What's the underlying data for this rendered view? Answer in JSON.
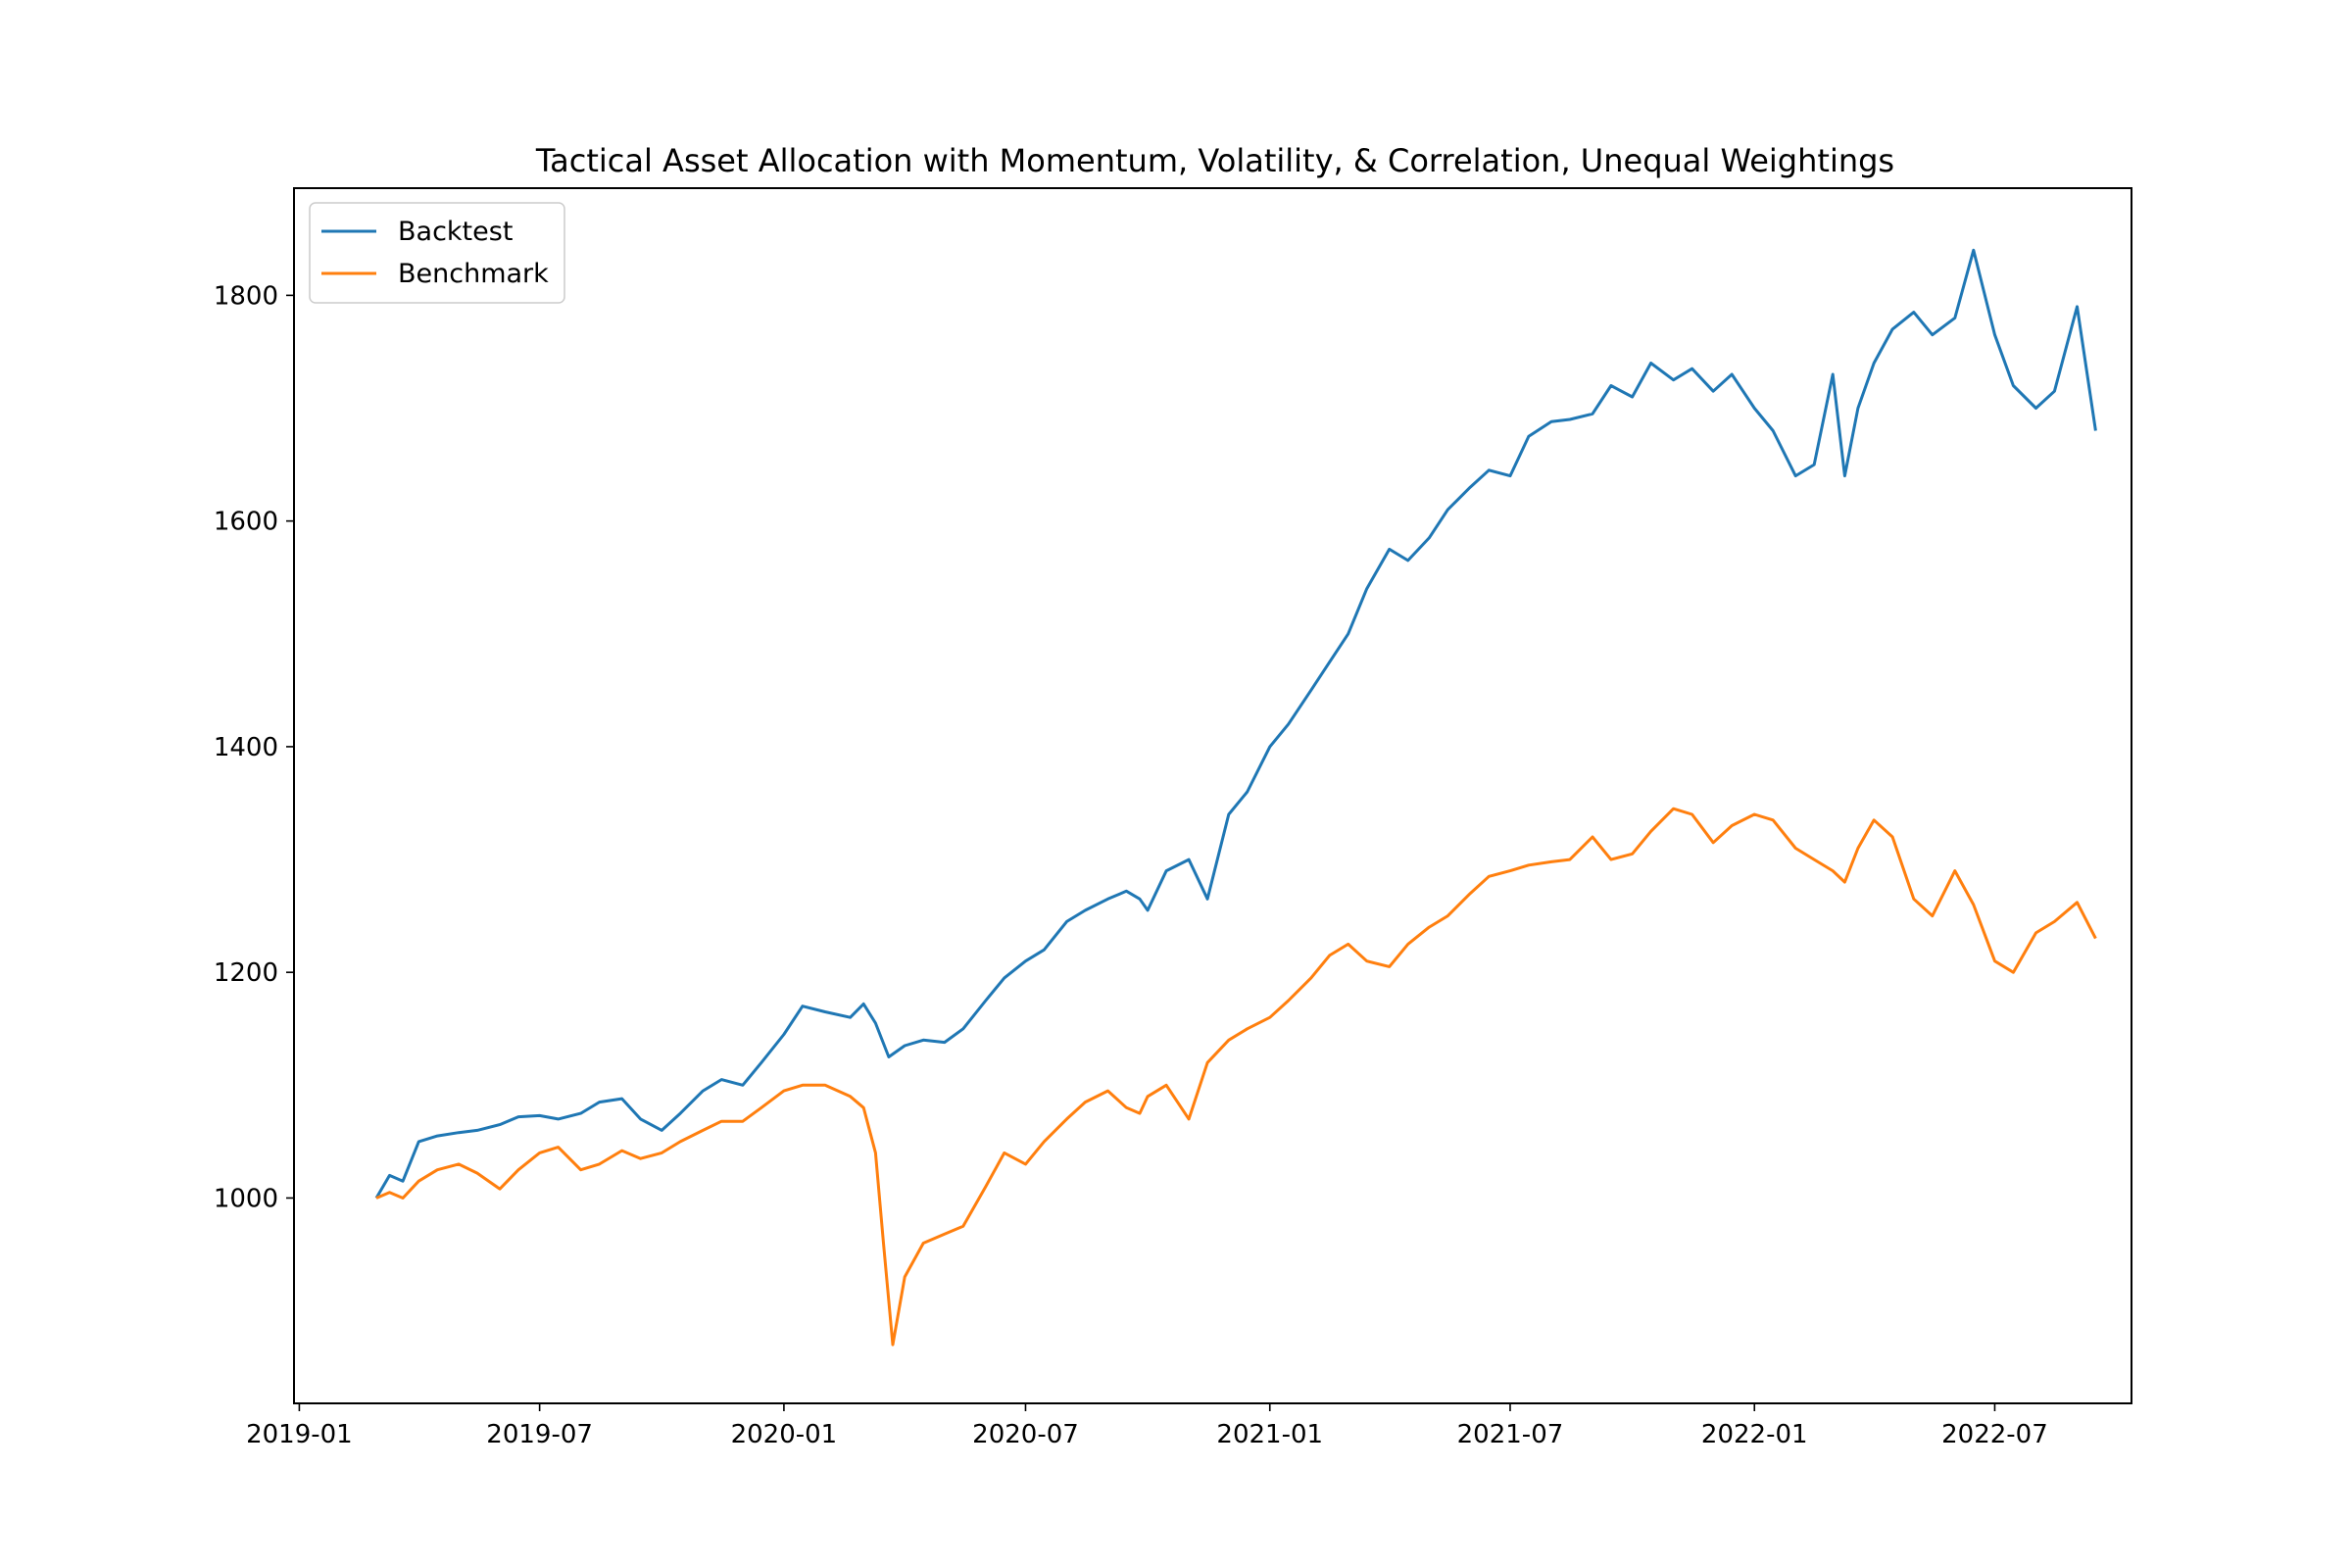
{
  "chart_data": {
    "type": "line",
    "title": "Tactical Asset Allocation with Momentum, Volatility, & Correlation, Unequal Weightings",
    "xlabel": "",
    "ylabel": "",
    "x_ticks": [
      "2019-01",
      "2019-07",
      "2020-01",
      "2020-07",
      "2021-01",
      "2021-07",
      "2022-01",
      "2022-07"
    ],
    "y_ticks": [
      1000,
      1200,
      1400,
      1600,
      1800
    ],
    "xlim": [
      "2018-12-28",
      "2022-10-12"
    ],
    "ylim": [
      818,
      1895
    ],
    "legend": "upper-left",
    "grid": false,
    "series": [
      {
        "name": "Backtest",
        "color": "#1f77b4",
        "x": [
          "2019-02-28",
          "2019-03-10",
          "2019-03-20",
          "2019-04-01",
          "2019-04-15",
          "2019-05-01",
          "2019-05-15",
          "2019-06-01",
          "2019-06-15",
          "2019-07-01",
          "2019-07-15",
          "2019-08-01",
          "2019-08-15",
          "2019-09-01",
          "2019-09-15",
          "2019-10-01",
          "2019-10-15",
          "2019-11-01",
          "2019-11-15",
          "2019-12-01",
          "2019-12-15",
          "2020-01-01",
          "2020-01-15",
          "2020-02-01",
          "2020-02-20",
          "2020-03-01",
          "2020-03-10",
          "2020-03-20",
          "2020-04-01",
          "2020-04-15",
          "2020-05-01",
          "2020-05-15",
          "2020-06-01",
          "2020-06-15",
          "2020-07-01",
          "2020-07-15",
          "2020-08-01",
          "2020-08-15",
          "2020-09-01",
          "2020-09-15",
          "2020-09-25",
          "2020-10-01",
          "2020-10-15",
          "2020-11-01",
          "2020-11-15",
          "2020-12-01",
          "2020-12-15",
          "2021-01-01",
          "2021-01-15",
          "2021-02-01",
          "2021-02-15",
          "2021-03-01",
          "2021-03-15",
          "2021-04-01",
          "2021-04-15",
          "2021-05-01",
          "2021-05-15",
          "2021-06-01",
          "2021-06-15",
          "2021-07-01",
          "2021-07-15",
          "2021-08-01",
          "2021-08-15",
          "2021-09-01",
          "2021-09-15",
          "2021-10-01",
          "2021-10-15",
          "2021-11-01",
          "2021-11-15",
          "2021-12-01",
          "2021-12-15",
          "2022-01-01",
          "2022-01-15",
          "2022-02-01",
          "2022-02-15",
          "2022-03-01",
          "2022-03-10",
          "2022-03-20",
          "2022-04-01",
          "2022-04-15",
          "2022-05-01",
          "2022-05-15",
          "2022-06-01",
          "2022-06-15",
          "2022-07-01",
          "2022-07-15",
          "2022-08-01",
          "2022-08-15",
          "2022-09-01",
          "2022-09-15"
        ],
        "values": [
          1000,
          1020,
          1015,
          1050,
          1055,
          1058,
          1060,
          1065,
          1072,
          1073,
          1070,
          1075,
          1085,
          1088,
          1070,
          1060,
          1075,
          1095,
          1105,
          1100,
          1120,
          1145,
          1170,
          1165,
          1160,
          1172,
          1155,
          1125,
          1135,
          1140,
          1138,
          1150,
          1175,
          1195,
          1210,
          1220,
          1245,
          1255,
          1265,
          1272,
          1265,
          1255,
          1290,
          1300,
          1265,
          1340,
          1360,
          1400,
          1420,
          1450,
          1475,
          1500,
          1540,
          1575,
          1565,
          1585,
          1610,
          1630,
          1645,
          1640,
          1675,
          1688,
          1690,
          1695,
          1720,
          1710,
          1740,
          1725,
          1735,
          1715,
          1730,
          1700,
          1680,
          1640,
          1650,
          1730,
          1640,
          1700,
          1740,
          1770,
          1785,
          1765,
          1780,
          1840,
          1765,
          1720,
          1700,
          1715,
          1790,
          1680
        ]
      },
      {
        "name": "Benchmark",
        "color": "#ff7f0e",
        "x": [
          "2019-02-28",
          "2019-03-10",
          "2019-03-20",
          "2019-04-01",
          "2019-04-15",
          "2019-05-01",
          "2019-05-15",
          "2019-06-01",
          "2019-06-15",
          "2019-07-01",
          "2019-07-15",
          "2019-08-01",
          "2019-08-15",
          "2019-09-01",
          "2019-09-15",
          "2019-10-01",
          "2019-10-15",
          "2019-11-01",
          "2019-11-15",
          "2019-12-01",
          "2019-12-15",
          "2020-01-01",
          "2020-01-15",
          "2020-02-01",
          "2020-02-20",
          "2020-03-01",
          "2020-03-10",
          "2020-03-16",
          "2020-03-23",
          "2020-04-01",
          "2020-04-15",
          "2020-05-01",
          "2020-05-15",
          "2020-06-01",
          "2020-06-15",
          "2020-07-01",
          "2020-07-15",
          "2020-08-01",
          "2020-08-15",
          "2020-09-01",
          "2020-09-15",
          "2020-09-25",
          "2020-10-01",
          "2020-10-15",
          "2020-11-01",
          "2020-11-15",
          "2020-12-01",
          "2020-12-15",
          "2021-01-01",
          "2021-01-15",
          "2021-02-01",
          "2021-02-15",
          "2021-03-01",
          "2021-03-15",
          "2021-04-01",
          "2021-04-15",
          "2021-05-01",
          "2021-05-15",
          "2021-06-01",
          "2021-06-15",
          "2021-07-01",
          "2021-07-15",
          "2021-08-01",
          "2021-08-15",
          "2021-09-01",
          "2021-09-15",
          "2021-10-01",
          "2021-10-15",
          "2021-11-01",
          "2021-11-15",
          "2021-12-01",
          "2021-12-15",
          "2022-01-01",
          "2022-01-15",
          "2022-02-01",
          "2022-02-15",
          "2022-03-01",
          "2022-03-10",
          "2022-03-20",
          "2022-04-01",
          "2022-04-15",
          "2022-05-01",
          "2022-05-15",
          "2022-06-01",
          "2022-06-15",
          "2022-07-01",
          "2022-07-15",
          "2022-08-01",
          "2022-08-15",
          "2022-09-01",
          "2022-09-15"
        ],
        "values": [
          1000,
          1005,
          1000,
          1015,
          1025,
          1030,
          1022,
          1008,
          1025,
          1040,
          1045,
          1025,
          1030,
          1042,
          1035,
          1040,
          1050,
          1060,
          1068,
          1068,
          1080,
          1095,
          1100,
          1100,
          1090,
          1080,
          1040,
          960,
          870,
          930,
          960,
          968,
          975,
          1010,
          1040,
          1030,
          1050,
          1070,
          1085,
          1095,
          1080,
          1075,
          1090,
          1100,
          1070,
          1120,
          1140,
          1150,
          1160,
          1175,
          1195,
          1215,
          1225,
          1210,
          1205,
          1225,
          1240,
          1250,
          1270,
          1285,
          1290,
          1295,
          1298,
          1300,
          1320,
          1300,
          1305,
          1325,
          1345,
          1340,
          1315,
          1330,
          1340,
          1335,
          1310,
          1300,
          1290,
          1280,
          1310,
          1335,
          1320,
          1265,
          1250,
          1290,
          1260,
          1210,
          1200,
          1235,
          1245,
          1262,
          1230
        ]
      }
    ]
  }
}
